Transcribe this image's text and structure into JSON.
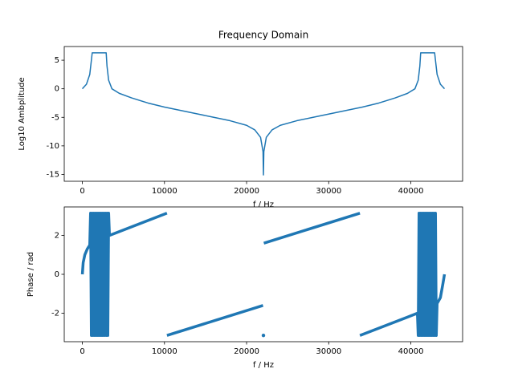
{
  "chart_data": [
    {
      "type": "line",
      "title": "Frequency Domain",
      "xlabel": "f / Hz",
      "ylabel": "Log10 Ambplitude",
      "x": [
        0,
        500,
        900,
        1100,
        1200,
        2000,
        2900,
        3000,
        3200,
        3600,
        4500,
        6000,
        8000,
        10000,
        12000,
        14000,
        16000,
        18000,
        20000,
        21000,
        21700,
        22000,
        22050,
        22100,
        22400,
        23100,
        24100,
        26100,
        28100,
        30100,
        32100,
        34100,
        36100,
        38100,
        39600,
        40500,
        40900,
        41100,
        41200,
        42100,
        42900,
        43000,
        43200,
        43600,
        44100
      ],
      "series": [
        {
          "color": "#1f77b4",
          "values": [
            0,
            0.8,
            2.5,
            5,
            6.3,
            6.3,
            6.3,
            4,
            1.5,
            0,
            -0.8,
            -1.6,
            -2.5,
            -3.2,
            -3.8,
            -4.4,
            -5,
            -5.6,
            -6.4,
            -7.2,
            -8.5,
            -11,
            -15.1,
            -11,
            -8.5,
            -7.2,
            -6.4,
            -5.6,
            -5,
            -4.4,
            -3.8,
            -3.2,
            -2.5,
            -1.6,
            -0.8,
            0,
            1.5,
            4,
            6.3,
            6.3,
            6.3,
            5,
            2.5,
            0.8,
            0
          ]
        }
      ],
      "xlim": [
        -2205,
        46305
      ],
      "ylim": [
        -16.2,
        7.4
      ],
      "xticks": [
        0,
        10000,
        20000,
        30000,
        40000
      ],
      "yticks": [
        -15,
        -10,
        -5,
        0,
        5
      ]
    },
    {
      "type": "line",
      "xlabel": "f / Hz",
      "ylabel": "Phase / rad",
      "x": [
        0,
        100,
        300,
        600,
        900,
        1000,
        1100,
        1200,
        1300,
        1400,
        1500,
        1600,
        1700,
        1800,
        1900,
        2000,
        2100,
        2200,
        2300,
        2400,
        2500,
        2600,
        2700,
        2800,
        2900,
        3000,
        3100,
        3200,
        3300,
        10300,
        10300,
        10300,
        22000,
        22000,
        22050,
        22050,
        22100,
        33800,
        33800,
        33800,
        40800,
        40900,
        41000,
        41100,
        41200,
        41300,
        41400,
        41500,
        41600,
        41700,
        41800,
        41900,
        42000,
        42100,
        42200,
        42300,
        42400,
        42500,
        42600,
        42700,
        42800,
        42900,
        43000,
        43100,
        43200,
        43600,
        43900,
        44100
      ],
      "series": [
        {
          "color": "#1f77b4",
          "values": [
            0,
            0.6,
            1.0,
            1.3,
            1.5,
            3.14,
            -3.14,
            3.14,
            -3.14,
            3.14,
            -3.14,
            3.14,
            -3.14,
            3.14,
            -3.14,
            3.14,
            -3.14,
            3.14,
            -3.14,
            3.14,
            -3.14,
            3.14,
            -3.14,
            3.14,
            -3.14,
            3.14,
            -3.14,
            3.14,
            2.0,
            3.14,
            null,
            -3.14,
            -1.6,
            null,
            -3.14,
            null,
            1.6,
            3.14,
            null,
            -3.14,
            -2.0,
            -3.14,
            3.14,
            -3.14,
            3.14,
            -3.14,
            3.14,
            -3.14,
            3.14,
            -3.14,
            3.14,
            -3.14,
            3.14,
            -3.14,
            3.14,
            -3.14,
            3.14,
            -3.14,
            3.14,
            -3.14,
            3.14,
            -3.14,
            3.14,
            -3.14,
            -1.5,
            -1.2,
            -0.5,
            0
          ]
        }
      ],
      "xlim": [
        -2205,
        46305
      ],
      "ylim": [
        -3.46,
        3.46
      ],
      "xticks": [
        0,
        10000,
        20000,
        30000,
        40000
      ],
      "yticks": [
        -2,
        0,
        2
      ]
    }
  ]
}
